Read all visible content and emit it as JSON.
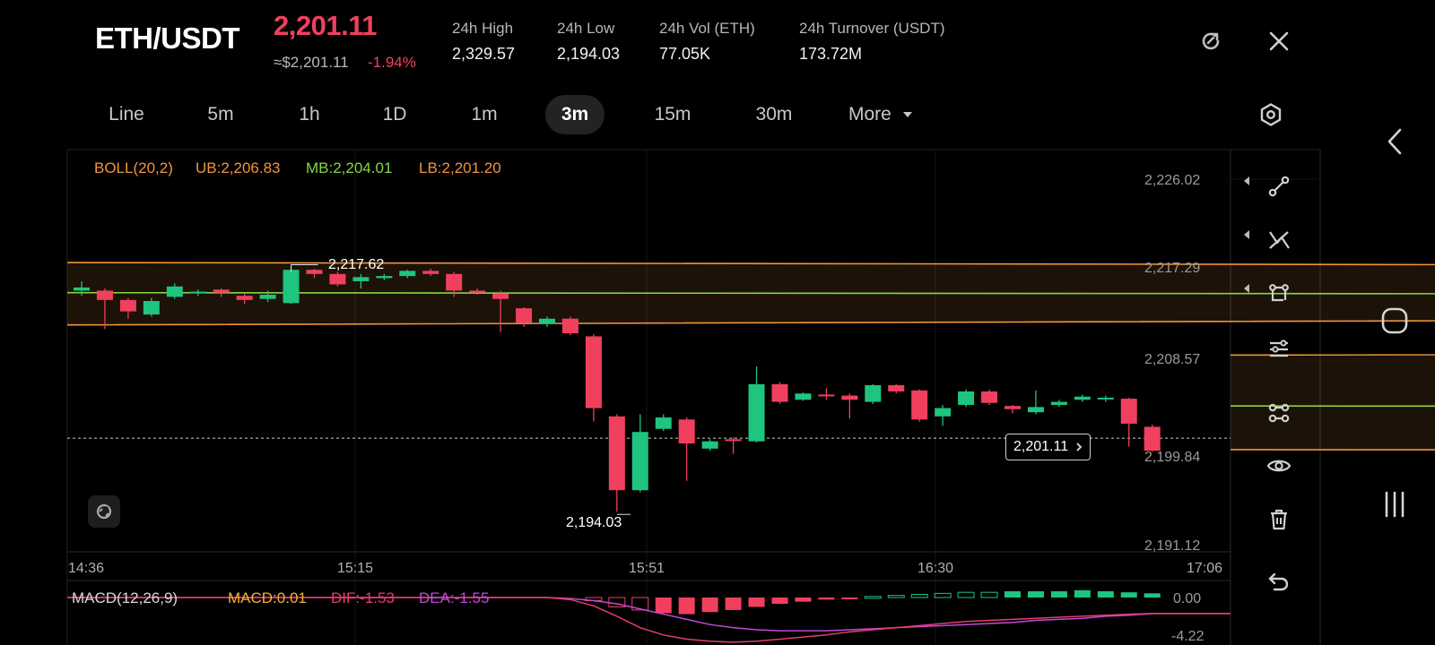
{
  "header": {
    "pair": "ETH/USDT",
    "last_price": "2,201.11",
    "approx_price": "≈$2,201.11",
    "change_pct": "-1.94%",
    "stats": [
      {
        "label": "24h   High",
        "value": "2,329.57"
      },
      {
        "label": "24h   Low",
        "value": "2,194.03"
      },
      {
        "label": "24h   Vol (ETH)",
        "value": "77.05K"
      },
      {
        "label": "24h   Turnover (USDT)",
        "value": "173.72M"
      }
    ],
    "icons": [
      "refresh-icon",
      "close-icon"
    ]
  },
  "tabs": [
    {
      "label": "Line",
      "active": false
    },
    {
      "label": "5m",
      "active": false
    },
    {
      "label": "1h",
      "active": false
    },
    {
      "label": "1D",
      "active": false
    },
    {
      "label": "1m",
      "active": false
    },
    {
      "label": "3m",
      "active": true
    },
    {
      "label": "15m",
      "active": false
    },
    {
      "label": "30m",
      "active": false
    },
    {
      "label": "More",
      "active": false
    }
  ],
  "indicators": {
    "boll_name": "BOLL(20,2)",
    "ub": "UB:2,206.83",
    "mb": "MB:2,204.01",
    "lb": "LB:2,201.20",
    "macd_name": "MACD(12,26,9)",
    "macd": "MACD:0.01",
    "dif": "DIF:-1.53",
    "dea": "DEA:-1.55"
  },
  "price_axis": [
    "2,226.02",
    "2,217.29",
    "2,208.57",
    "2,199.84",
    "2,191.12"
  ],
  "time_axis": [
    "14:36",
    "15:15",
    "15:51",
    "16:30",
    "17:06"
  ],
  "macd_axis": [
    "0.00",
    "-4.22"
  ],
  "annotations": {
    "high_marker": "2,217.62",
    "low_marker": "2,194.03",
    "current_price_tag": "2,201.11"
  },
  "colors": {
    "up": "#1fc47f",
    "down": "#f0405e",
    "boll_band": "#f0953a",
    "boll_mid": "#86d644",
    "dea": "#c04ad6",
    "dif": "#e63d6b"
  },
  "chart_data": {
    "type": "candlestick",
    "ylim": [
      2189.5,
      2227.5
    ],
    "candles": [
      {
        "o": 2215.3,
        "c": 2215.6,
        "h": 2216.2,
        "l": 2214.8
      },
      {
        "o": 2215.3,
        "c": 2214.4,
        "h": 2215.5,
        "l": 2211.6
      },
      {
        "o": 2214.4,
        "c": 2213.3,
        "h": 2214.6,
        "l": 2212.6
      },
      {
        "o": 2213.0,
        "c": 2214.3,
        "h": 2214.6,
        "l": 2212.8
      },
      {
        "o": 2214.7,
        "c": 2215.7,
        "h": 2216.0,
        "l": 2214.5
      },
      {
        "o": 2215.1,
        "c": 2215.2,
        "h": 2215.4,
        "l": 2214.8
      },
      {
        "o": 2215.4,
        "c": 2215.1,
        "h": 2215.5,
        "l": 2214.7
      },
      {
        "o": 2214.8,
        "c": 2214.4,
        "h": 2215.0,
        "l": 2214.0
      },
      {
        "o": 2214.5,
        "c": 2214.9,
        "h": 2215.3,
        "l": 2214.2
      },
      {
        "o": 2214.1,
        "c": 2217.3,
        "h": 2217.62,
        "l": 2214.0
      },
      {
        "o": 2217.3,
        "c": 2216.9,
        "h": 2217.4,
        "l": 2216.5
      },
      {
        "o": 2216.9,
        "c": 2215.9,
        "h": 2217.1,
        "l": 2215.7
      },
      {
        "o": 2216.2,
        "c": 2216.6,
        "h": 2216.9,
        "l": 2215.5
      },
      {
        "o": 2216.5,
        "c": 2216.7,
        "h": 2216.9,
        "l": 2216.3
      },
      {
        "o": 2216.7,
        "c": 2217.2,
        "h": 2217.3,
        "l": 2216.5
      },
      {
        "o": 2217.2,
        "c": 2216.9,
        "h": 2217.4,
        "l": 2216.7
      },
      {
        "o": 2216.9,
        "c": 2215.3,
        "h": 2217.1,
        "l": 2214.7
      },
      {
        "o": 2215.3,
        "c": 2215.1,
        "h": 2215.5,
        "l": 2214.9
      },
      {
        "o": 2215.0,
        "c": 2214.5,
        "h": 2215.3,
        "l": 2211.3
      },
      {
        "o": 2213.6,
        "c": 2212.2,
        "h": 2213.7,
        "l": 2211.8
      },
      {
        "o": 2212.1,
        "c": 2212.6,
        "h": 2212.8,
        "l": 2211.8
      },
      {
        "o": 2212.6,
        "c": 2211.2,
        "h": 2212.8,
        "l": 2211.0
      },
      {
        "o": 2210.9,
        "c": 2204.0,
        "h": 2211.1,
        "l": 2202.7
      },
      {
        "o": 2203.2,
        "c": 2196.1,
        "h": 2203.4,
        "l": 2194.03
      },
      {
        "o": 2196.1,
        "c": 2201.7,
        "h": 2203.4,
        "l": 2195.9
      },
      {
        "o": 2202.0,
        "c": 2203.1,
        "h": 2203.4,
        "l": 2201.8
      },
      {
        "o": 2202.9,
        "c": 2200.6,
        "h": 2203.1,
        "l": 2197.0
      },
      {
        "o": 2200.1,
        "c": 2200.8,
        "h": 2201.0,
        "l": 2199.9
      },
      {
        "o": 2201.0,
        "c": 2200.9,
        "h": 2201.2,
        "l": 2199.6
      },
      {
        "o": 2200.8,
        "c": 2206.3,
        "h": 2208.0,
        "l": 2200.7
      },
      {
        "o": 2206.3,
        "c": 2204.6,
        "h": 2206.5,
        "l": 2204.4
      },
      {
        "o": 2204.8,
        "c": 2205.4,
        "h": 2205.5,
        "l": 2204.7
      },
      {
        "o": 2205.3,
        "c": 2205.2,
        "h": 2205.9,
        "l": 2204.8
      },
      {
        "o": 2205.2,
        "c": 2204.8,
        "h": 2205.4,
        "l": 2203.0
      },
      {
        "o": 2204.6,
        "c": 2206.2,
        "h": 2206.3,
        "l": 2204.4
      },
      {
        "o": 2206.2,
        "c": 2205.6,
        "h": 2206.3,
        "l": 2205.4
      },
      {
        "o": 2205.7,
        "c": 2202.9,
        "h": 2205.8,
        "l": 2202.7
      },
      {
        "o": 2203.2,
        "c": 2204.0,
        "h": 2204.3,
        "l": 2202.3
      },
      {
        "o": 2204.3,
        "c": 2205.6,
        "h": 2205.8,
        "l": 2204.1
      },
      {
        "o": 2205.6,
        "c": 2204.5,
        "h": 2205.8,
        "l": 2204.3
      },
      {
        "o": 2204.2,
        "c": 2203.9,
        "h": 2204.3,
        "l": 2203.5
      },
      {
        "o": 2203.6,
        "c": 2204.1,
        "h": 2205.7,
        "l": 2203.4
      },
      {
        "o": 2204.3,
        "c": 2204.6,
        "h": 2204.8,
        "l": 2204.1
      },
      {
        "o": 2204.8,
        "c": 2205.1,
        "h": 2205.3,
        "l": 2204.6
      },
      {
        "o": 2205.0,
        "c": 2205.0,
        "h": 2205.2,
        "l": 2204.6
      },
      {
        "o": 2204.9,
        "c": 2202.5,
        "h": 2205.0,
        "l": 2200.3
      },
      {
        "o": 2202.2,
        "c": 2199.9,
        "h": 2202.4,
        "l": 2199.8
      }
    ],
    "boll_upper": [
      [
        2036,
        2218.0
      ],
      [
        2040,
        2217.6
      ],
      [
        2044,
        2217.3
      ],
      [
        2048,
        2217.2
      ],
      [
        2053,
        2217.1
      ],
      [
        2058,
        2217.1
      ],
      [
        2103,
        2217.2
      ],
      [
        2108,
        2217.9
      ],
      [
        2110,
        2221.4
      ],
      [
        2113,
        2222.7
      ],
      [
        2118,
        2223.1
      ],
      [
        2125,
        2222.6
      ],
      [
        2130,
        2221.5
      ],
      [
        2135,
        2219.6
      ],
      [
        2138,
        2217.9
      ],
      [
        2142,
        2215.9
      ],
      [
        2145,
        2213.6
      ],
      [
        2148,
        2210.4
      ],
      [
        2150,
        2209.4
      ],
      [
        2156,
        2209.1
      ]
    ],
    "boll_lower": [
      [
        2036,
        2212.0
      ],
      [
        2040,
        2212.8
      ],
      [
        2044,
        2213.0
      ],
      [
        2048,
        2213.0
      ],
      [
        2053,
        2212.8
      ],
      [
        2058,
        2212.8
      ],
      [
        2102,
        2212.3
      ],
      [
        2105,
        2211.0
      ],
      [
        2107,
        2204.6
      ],
      [
        2108,
        2201.9
      ],
      [
        2110,
        2199.5
      ],
      [
        2113,
        2196.6
      ],
      [
        2118,
        2195.8
      ],
      [
        2123,
        2195.6
      ],
      [
        2128,
        2195.9
      ],
      [
        2133,
        2196.5
      ],
      [
        2136,
        2197.2
      ],
      [
        2139,
        2198.0
      ],
      [
        2142,
        2198.5
      ],
      [
        2145,
        2199.5
      ],
      [
        2150,
        2199.9
      ],
      [
        2156,
        2200.0
      ]
    ],
    "boll_mid": [
      [
        2036,
        2215.1
      ],
      [
        2040,
        2214.9
      ],
      [
        2044,
        2215.1
      ],
      [
        2048,
        2214.9
      ],
      [
        2053,
        2214.7
      ],
      [
        2058,
        2214.6
      ],
      [
        2102,
        2214.4
      ],
      [
        2105,
        2213.3
      ],
      [
        2108,
        2211.2
      ],
      [
        2110,
        2210.1
      ],
      [
        2113,
        2208.7
      ],
      [
        2118,
        2207.8
      ],
      [
        2123,
        2207.3
      ],
      [
        2128,
        2206.7
      ],
      [
        2133,
        2205.9
      ],
      [
        2136,
        2205.1
      ],
      [
        2139,
        2204.4
      ],
      [
        2142,
        2204.0
      ],
      [
        2145,
        2203.6
      ],
      [
        2150,
        2204.1
      ],
      [
        2156,
        2204.2
      ]
    ],
    "macd_hist": [
      0,
      0,
      0,
      0,
      0,
      0,
      0,
      0,
      0,
      0,
      0,
      0,
      0,
      0,
      0,
      0,
      0,
      0,
      0,
      0,
      0,
      0,
      -0.3,
      -0.9,
      -1.2,
      -1.5,
      -1.6,
      -1.4,
      -1.2,
      -0.9,
      -0.6,
      -0.4,
      -0.2,
      -0.1,
      0.1,
      0.2,
      0.3,
      0.4,
      0.5,
      0.5,
      0.6,
      0.6,
      0.6,
      0.7,
      0.6,
      0.5,
      0.4
    ],
    "macd_dif": [
      0,
      0,
      0,
      0,
      0,
      0,
      0,
      0,
      0,
      0,
      0,
      0,
      0,
      0,
      0,
      0,
      0,
      0,
      0,
      0,
      0,
      -0.2,
      -0.8,
      -1.8,
      -2.9,
      -3.6,
      -4.0,
      -4.2,
      -4.3,
      -4.2,
      -4.0,
      -3.8,
      -3.6,
      -3.3,
      -3.1,
      -2.9,
      -2.7,
      -2.5,
      -2.3,
      -2.2,
      -2.1,
      -2.0,
      -1.9,
      -1.8,
      -1.7,
      -1.6,
      -1.53
    ],
    "macd_dea": [
      0,
      0,
      0,
      0,
      0,
      0,
      0,
      0,
      0,
      0,
      0,
      0,
      0,
      0,
      0,
      0,
      0,
      0,
      0,
      0,
      0,
      -0.1,
      -0.3,
      -0.6,
      -1.1,
      -1.6,
      -2.1,
      -2.6,
      -2.9,
      -3.1,
      -3.2,
      -3.2,
      -3.2,
      -3.1,
      -3.0,
      -2.9,
      -2.8,
      -2.7,
      -2.6,
      -2.5,
      -2.4,
      -2.2,
      -2.1,
      -2.0,
      -1.8,
      -1.7,
      -1.55
    ],
    "macd_ylim": [
      -4.6,
      0.9
    ]
  }
}
